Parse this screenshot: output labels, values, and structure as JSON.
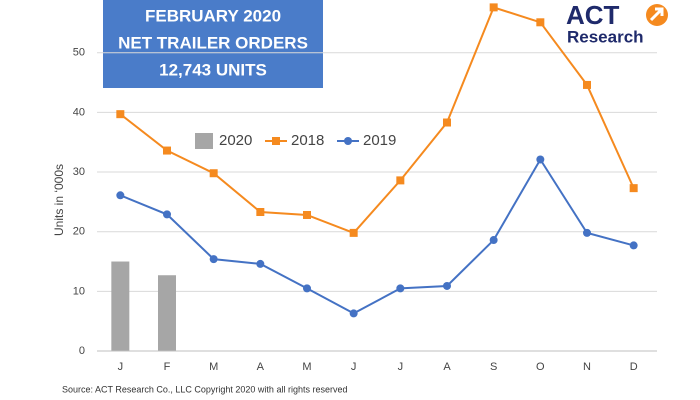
{
  "chart_data": {
    "type": "combo",
    "title": [
      "FEBRUARY 2020",
      "NET TRAILER ORDERS",
      "12,743 UNITS"
    ],
    "logo": [
      "ACT",
      "Research"
    ],
    "y_label": "Units in ‘000s",
    "source": "Source: ACT Research Co., LLC  Copyright 2020 with all rights reserved",
    "categories": [
      "J",
      "F",
      "M",
      "A",
      "M",
      "J",
      "J",
      "A",
      "S",
      "O",
      "N",
      "D"
    ],
    "series": [
      {
        "name": "2020",
        "type": "bar",
        "color": "#a6a6a6",
        "values": [
          15,
          12.7,
          null,
          null,
          null,
          null,
          null,
          null,
          null,
          null,
          null,
          null
        ]
      },
      {
        "name": "2018",
        "type": "line",
        "marker": "square",
        "color": "#f58a1f",
        "values": [
          39.7,
          33.6,
          29.8,
          23.3,
          22.8,
          19.8,
          28.6,
          38.3,
          57.6,
          55.1,
          44.6,
          27.3
        ]
      },
      {
        "name": "2019",
        "type": "line",
        "marker": "circle",
        "color": "#4472c4",
        "values": [
          26.1,
          22.9,
          15.4,
          14.6,
          10.5,
          6.3,
          10.5,
          10.9,
          18.6,
          32.1,
          19.8,
          17.7
        ]
      }
    ],
    "ylim": [
      0,
      58
    ],
    "yticks": [
      0,
      10,
      20,
      30,
      40,
      50
    ],
    "grid": true
  }
}
